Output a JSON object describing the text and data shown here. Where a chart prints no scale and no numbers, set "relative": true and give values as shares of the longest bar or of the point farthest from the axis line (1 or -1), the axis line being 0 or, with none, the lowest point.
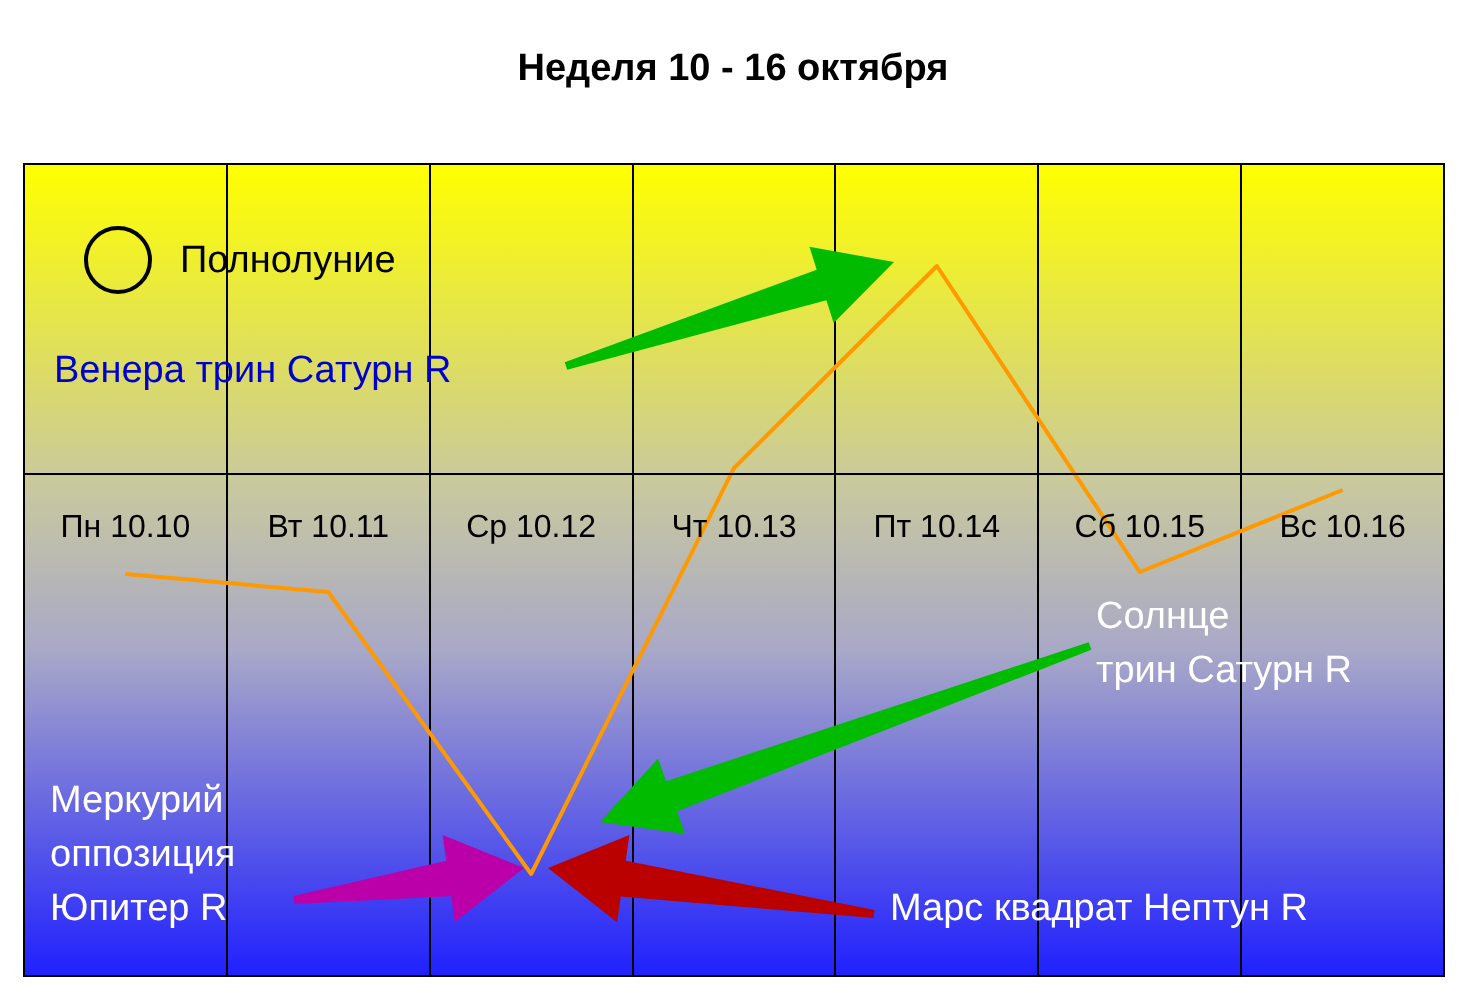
{
  "chart_data": {
    "type": "line",
    "title": "Неделя 10 - 16 октября",
    "relative": true,
    "categories": [
      "Пн 10.10",
      "Вт 10.11",
      "Ср 10.12",
      "Чт 10.13",
      "Пт 10.14",
      "Сб 10.15",
      "Вс 10.16"
    ],
    "series": [
      {
        "color": "#ff9900",
        "values": [
          -0.25,
          -0.295,
          -1,
          0.015,
          0.52,
          -0.245,
          -0.04
        ]
      }
    ],
    "grid": "x",
    "legend": false,
    "marker": "none",
    "line_style": "solid",
    "annotations": [
      "Полнолуние",
      "Венера трин Сатурн R",
      "Солнце\nтрин Сатурн R",
      "Меркурий\nоппозиция\nЮпитер R",
      "Марс квадрат Нептун R"
    ]
  }
}
